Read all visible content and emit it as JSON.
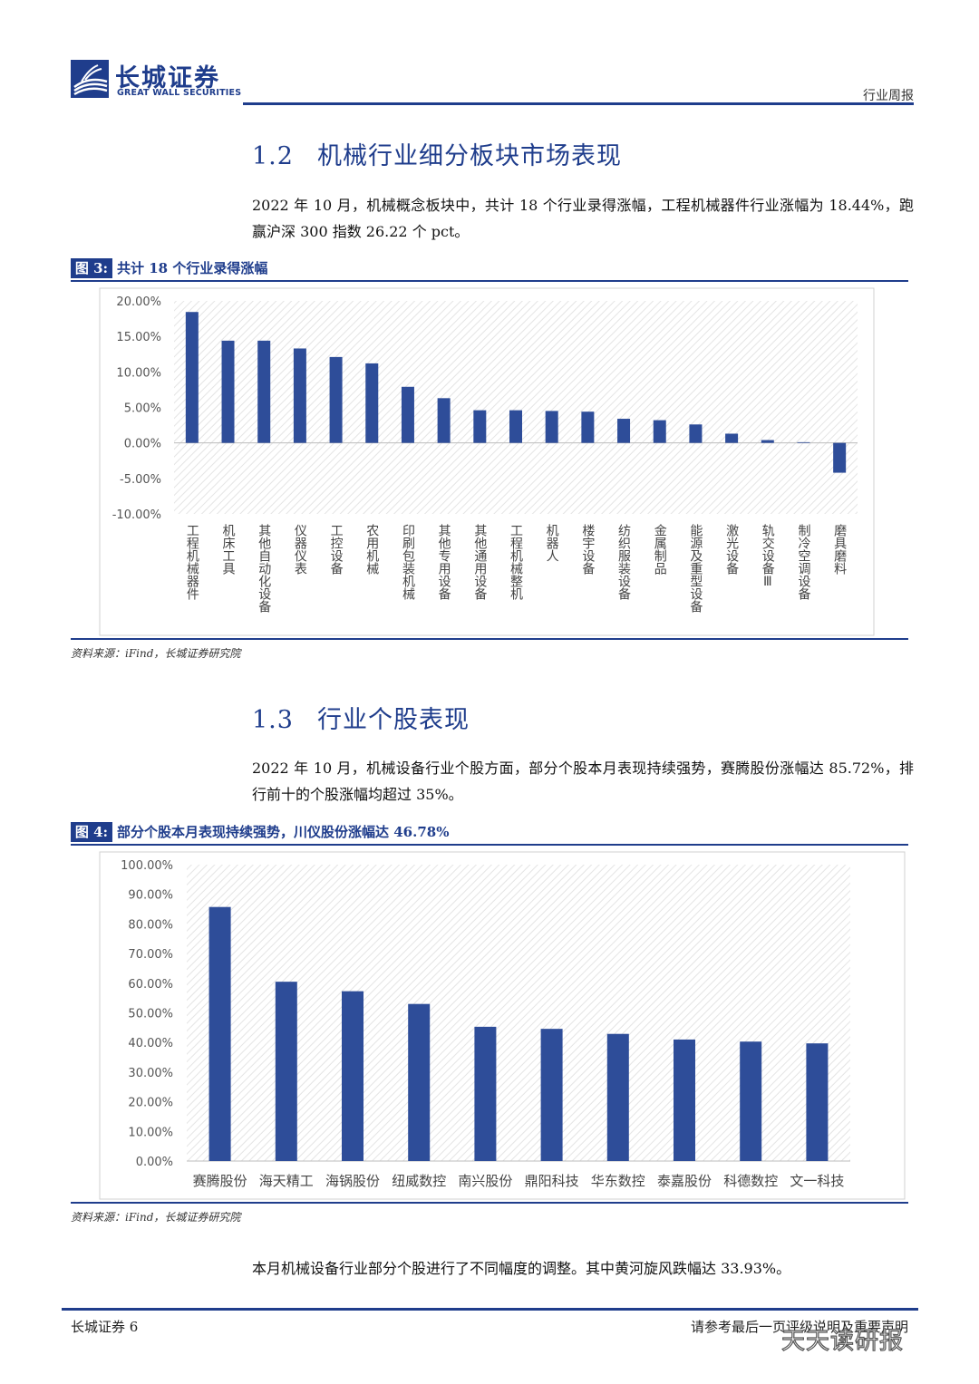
{
  "header": {
    "company_cn": "长城证券",
    "company_en": "GREAT WALL SECURITIES",
    "report_type": "行业周报"
  },
  "section_1_2": {
    "number": "1.2",
    "title": "机械行业细分板块市场表现",
    "paragraph": "2022 年 10 月，机械概念板块中，共计 18 个行业录得涨幅，工程机械器件行业涨幅为 18.44%，跑赢沪深 300 指数 26.22 个 pct。"
  },
  "figure_3": {
    "label": "图 3:",
    "title": "共计 18 个行业录得涨幅",
    "source": "资料来源：iFind，长城证券研究院"
  },
  "section_1_3": {
    "number": "1.3",
    "title": "行业个股表现",
    "paragraph": "2022 年 10 月，机械设备行业个股方面，部分个股本月表现持续强势，赛腾股份涨幅达 85.72%，排行前十的个股涨幅均超过 35%。"
  },
  "figure_4": {
    "label": "图 4:",
    "title": "部分个股本月表现持续强势，川仪股份涨幅达 46.78%",
    "source": "资料来源：iFind，长城证券研究院"
  },
  "closing_paragraph": "本月机械设备行业部分个股进行了不同幅度的调整。其中黄河旋风跌幅达 33.93%。",
  "footer": {
    "left": "长城证券 6",
    "right": "请参考最后一页评级说明及重要声明",
    "watermark": "天天读研报"
  },
  "colors": {
    "brand": "#1f3d8c",
    "bar": "#2e4d99"
  },
  "chart_data": [
    {
      "type": "bar",
      "orientation": "vertical",
      "categories": [
        "工程机械器件",
        "机床工具",
        "其他自动化设备",
        "仪器仪表",
        "工控设备",
        "农用机械",
        "印刷包装机械",
        "其他专用设备",
        "其他通用设备",
        "工程机械整机",
        "机器人",
        "楼宇设备",
        "纺织服装设备",
        "金属制品",
        "能源及重型设备",
        "激光设备",
        "轨交设备Ⅲ",
        "制冷空调设备",
        "磨具磨料"
      ],
      "values": [
        18.44,
        14.4,
        14.4,
        13.3,
        12.1,
        11.2,
        7.9,
        6.3,
        4.6,
        4.6,
        4.5,
        4.4,
        3.4,
        3.2,
        2.6,
        1.3,
        0.4,
        0.1,
        -4.2
      ],
      "ylim": [
        -10,
        20
      ],
      "yticks": [
        "20.00%",
        "15.00%",
        "10.00%",
        "5.00%",
        "0.00%",
        "-5.00%",
        "-10.00%"
      ],
      "grid": "hatched background",
      "legend": "none"
    },
    {
      "type": "bar",
      "orientation": "vertical",
      "categories": [
        "赛腾股份",
        "海天精工",
        "海锅股份",
        "纽威数控",
        "南兴股份",
        "鼎阳科技",
        "华东数控",
        "泰嘉股份",
        "科德数控",
        "文一科技"
      ],
      "values": [
        85.72,
        60.5,
        57.3,
        53.0,
        45.3,
        44.6,
        42.9,
        41.0,
        40.3,
        39.7
      ],
      "ylim": [
        0,
        100
      ],
      "yticks": [
        "100.00%",
        "90.00%",
        "80.00%",
        "70.00%",
        "60.00%",
        "50.00%",
        "40.00%",
        "30.00%",
        "20.00%",
        "10.00%",
        "0.00%"
      ],
      "grid": "hatched background",
      "legend": "none"
    }
  ]
}
